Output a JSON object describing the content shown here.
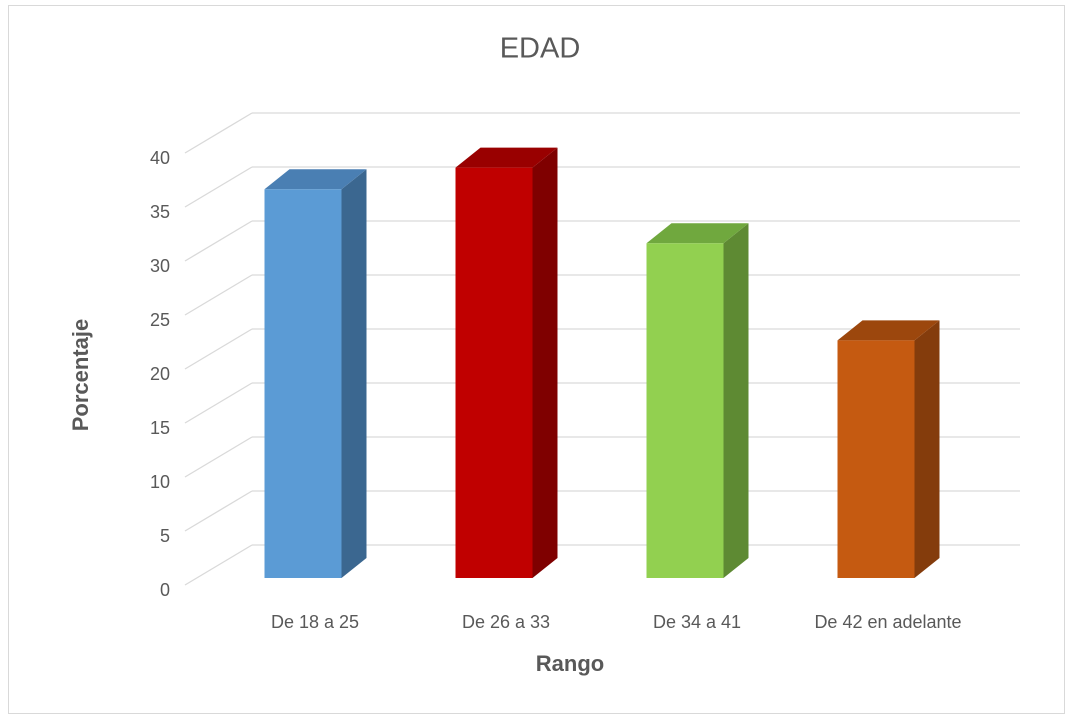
{
  "chart_data": {
    "type": "bar3d",
    "title": "EDAD",
    "x_label": "Rango",
    "y_label": "Porcentaje",
    "categories": [
      "De 18 a 25",
      "De 26 a 33",
      "De 34 a 41",
      "De 42 en adelante"
    ],
    "values": [
      36,
      38,
      31,
      22
    ],
    "colors": [
      "#5b9bd5",
      "#c00000",
      "#92d050",
      "#c55a11"
    ],
    "side_colors": [
      "#3b6790",
      "#7f0000",
      "#5e8a33",
      "#843c0c"
    ],
    "top_colors": [
      "#4a7fb3",
      "#990000",
      "#70a83e",
      "#9c470d"
    ],
    "ylim": [
      0,
      40
    ],
    "yticks": [
      0,
      5,
      10,
      15,
      20,
      25,
      30,
      35,
      40
    ],
    "grid": true
  }
}
